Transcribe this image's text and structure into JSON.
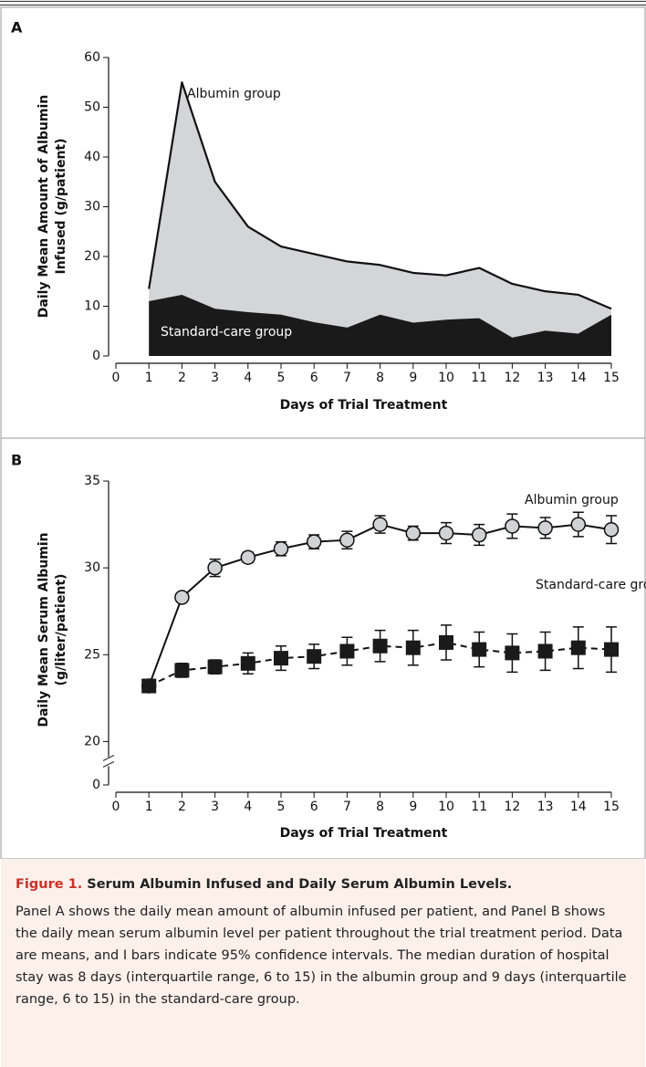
{
  "chart_data": [
    {
      "type": "area",
      "panel": "A",
      "y_label": [
        "Daily Mean Amount of Albumin",
        "Infused (g/patient)"
      ],
      "x_label": "Days of Trial Treatment",
      "x": [
        1,
        2,
        3,
        4,
        5,
        6,
        7,
        8,
        9,
        10,
        11,
        12,
        13,
        14,
        15
      ],
      "xlim": [
        0,
        15
      ],
      "xticks": [
        0,
        1,
        2,
        3,
        4,
        5,
        6,
        7,
        8,
        9,
        10,
        11,
        12,
        13,
        14,
        15
      ],
      "ylim": [
        0,
        60
      ],
      "yticks": [
        0,
        10,
        20,
        30,
        40,
        50,
        60
      ],
      "series": [
        {
          "name": "Albumin group",
          "color": "#d3d5d8",
          "line_color": "#111111",
          "values": [
            13.5,
            55,
            35,
            26,
            22,
            20.5,
            19,
            18.3,
            16.7,
            16.2,
            17.7,
            14.5,
            13,
            12.3,
            9.5
          ]
        },
        {
          "name": "Standard-care group",
          "color": "#1a1a1a",
          "values": [
            11,
            12.3,
            9.5,
            8.8,
            8.3,
            6.8,
            5.7,
            8.3,
            6.7,
            7.3,
            7.6,
            3.7,
            5.1,
            4.5,
            8.3
          ]
        }
      ]
    },
    {
      "type": "line",
      "panel": "B",
      "y_label": [
        "Daily Mean Serum Albumin",
        "(g/liter/patient)"
      ],
      "x_label": "Days of Trial Treatment",
      "x": [
        1,
        2,
        3,
        4,
        5,
        6,
        7,
        8,
        9,
        10,
        11,
        12,
        13,
        14,
        15
      ],
      "xlim": [
        0,
        15
      ],
      "xticks": [
        0,
        1,
        2,
        3,
        4,
        5,
        6,
        7,
        8,
        9,
        10,
        11,
        12,
        13,
        14,
        15
      ],
      "ylim": [
        17.5,
        35
      ],
      "yticks": [
        0,
        20,
        25,
        30,
        35
      ],
      "axis_break": true,
      "series": [
        {
          "name": "Albumin group",
          "color": "#d0d2d5",
          "marker": "circle",
          "dashed": false,
          "values": [
            23.2,
            28.3,
            30.0,
            30.6,
            31.1,
            31.5,
            31.6,
            32.5,
            32.0,
            32.0,
            31.9,
            32.4,
            32.3,
            32.5,
            32.2
          ],
          "errors": [
            0.1,
            0.2,
            0.5,
            0.3,
            0.4,
            0.4,
            0.5,
            0.5,
            0.4,
            0.6,
            0.6,
            0.7,
            0.6,
            0.7,
            0.8
          ]
        },
        {
          "name": "Standard-care group",
          "color": "#1a1a1a",
          "marker": "square",
          "dashed": true,
          "values": [
            23.2,
            24.1,
            24.3,
            24.5,
            24.8,
            24.9,
            25.2,
            25.5,
            25.4,
            25.7,
            25.3,
            25.1,
            25.2,
            25.4,
            25.3
          ],
          "errors": [
            0.1,
            0.4,
            0.4,
            0.6,
            0.7,
            0.7,
            0.8,
            0.9,
            1.0,
            1.0,
            1.0,
            1.1,
            1.1,
            1.2,
            1.3
          ]
        }
      ]
    }
  ],
  "caption": {
    "label": "Figure 1.",
    "title": "Serum Albumin Infused and Daily Serum Albumin Levels.",
    "text": "Panel A shows the daily mean amount of albumin infused per patient, and Panel B shows the daily mean serum albumin level per patient throughout the trial treatment period. Data are means, and I bars indicate 95% confidence intervals. The median duration of hospital stay was 8 days (interquartile range, 6 to 15) in the albumin group and 9 days (interquartile range, 6 to 15) in the standard-care group."
  }
}
